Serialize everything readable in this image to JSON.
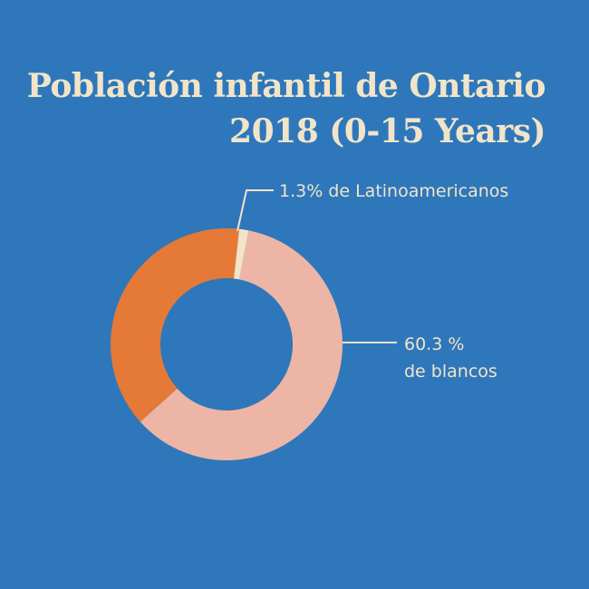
{
  "title_line1": "Población infantil de Ontario",
  "title_line2": "2018 (0-15 Years)",
  "colors": {
    "background": "#2e77bb",
    "text": "#f1e4c8",
    "leader_line": "#f1e4c8"
  },
  "chart_data": {
    "type": "pie",
    "style": "donut",
    "slices": [
      {
        "value": 60.3,
        "color": "#ecb5a6"
      },
      {
        "value": 38.4,
        "color": "#e57938"
      },
      {
        "value": 1.3,
        "color": "#f1e4c8"
      }
    ],
    "annotations": [
      {
        "slice_index": 2,
        "lines": [
          "1.3% de Latinoamericanos"
        ]
      },
      {
        "slice_index": 0,
        "lines": [
          "60.3 %",
          "de blancos"
        ]
      }
    ]
  }
}
